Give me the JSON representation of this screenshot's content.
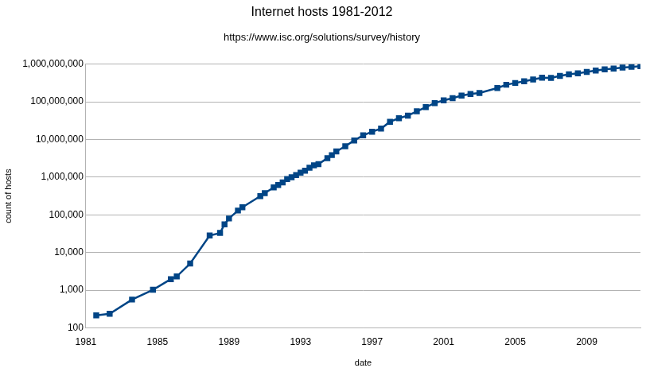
{
  "chart_data": {
    "type": "line",
    "title": "Internet hosts 1981-2012",
    "subtitle": "https://www.isc.org/solutions/survey/history",
    "x_label": "date",
    "y_label": "count of hosts",
    "log": "y",
    "grid": "y",
    "series": [
      {
        "name": "count of hosts",
        "color": "#004586",
        "marker": "square",
        "line_style": "solid",
        "x": [
          1981.58,
          1982.33,
          1983.58,
          1984.75,
          1985.75,
          1986.08,
          1986.83,
          1987.92,
          1988.5,
          1988.75,
          1989.0,
          1989.5,
          1989.75,
          1990.75,
          1991.0,
          1991.5,
          1991.75,
          1992.0,
          1992.25,
          1992.5,
          1992.75,
          1993.0,
          1993.25,
          1993.5,
          1993.75,
          1994.0,
          1994.5,
          1994.75,
          1995.0,
          1995.5,
          1996.0,
          1996.5,
          1997.0,
          1997.5,
          1998.0,
          1998.5,
          1999.0,
          1999.5,
          2000.0,
          2000.5,
          2001.0,
          2001.5,
          2002.0,
          2002.5,
          2003.0,
          2004.0,
          2004.5,
          2005.0,
          2005.5,
          2006.0,
          2006.5,
          2007.0,
          2007.5,
          2008.0,
          2008.5,
          2009.0,
          2009.5,
          2010.0,
          2010.5,
          2011.0,
          2011.5,
          2012.0
        ],
        "values": [
          213,
          235,
          562,
          1024,
          1961,
          2308,
          5089,
          28174,
          33000,
          56000,
          80000,
          130000,
          159000,
          313000,
          376000,
          535000,
          617000,
          727000,
          890000,
          992000,
          1136000,
          1313000,
          1486000,
          1776000,
          2056000,
          2217000,
          3212000,
          3864000,
          4852000,
          6642000,
          9472000,
          12881000,
          16146000,
          19540000,
          29670000,
          36739000,
          43230000,
          56218000,
          72398000,
          93048000,
          109574000,
          125888000,
          147345000,
          162128000,
          171638000,
          233101000,
          285139000,
          317646000,
          353284000,
          394992000,
          439286000,
          433193000,
          489774000,
          541677000,
          570938000,
          625226000,
          681065000,
          732740000,
          768913000,
          818374000,
          849870000,
          888239000
        ]
      }
    ],
    "xlim": [
      1981,
      2012
    ],
    "xticks": [
      1981,
      1985,
      1989,
      1993,
      1997,
      2001,
      2005,
      2009
    ],
    "ylim": [
      100,
      1000000000
    ],
    "yticks": [
      100,
      {
        "value": 1000,
        "label": "1,000"
      },
      {
        "value": 10000,
        "label": "10,000"
      },
      {
        "value": 100000,
        "label": "100,000"
      },
      {
        "value": 1000000,
        "label": "1,000,000"
      },
      {
        "value": 10000000,
        "label": "10,000,000"
      },
      {
        "value": 100000000,
        "label": "100,000,000"
      },
      {
        "value": 1000000000,
        "label": "1,000,000,000"
      }
    ]
  }
}
